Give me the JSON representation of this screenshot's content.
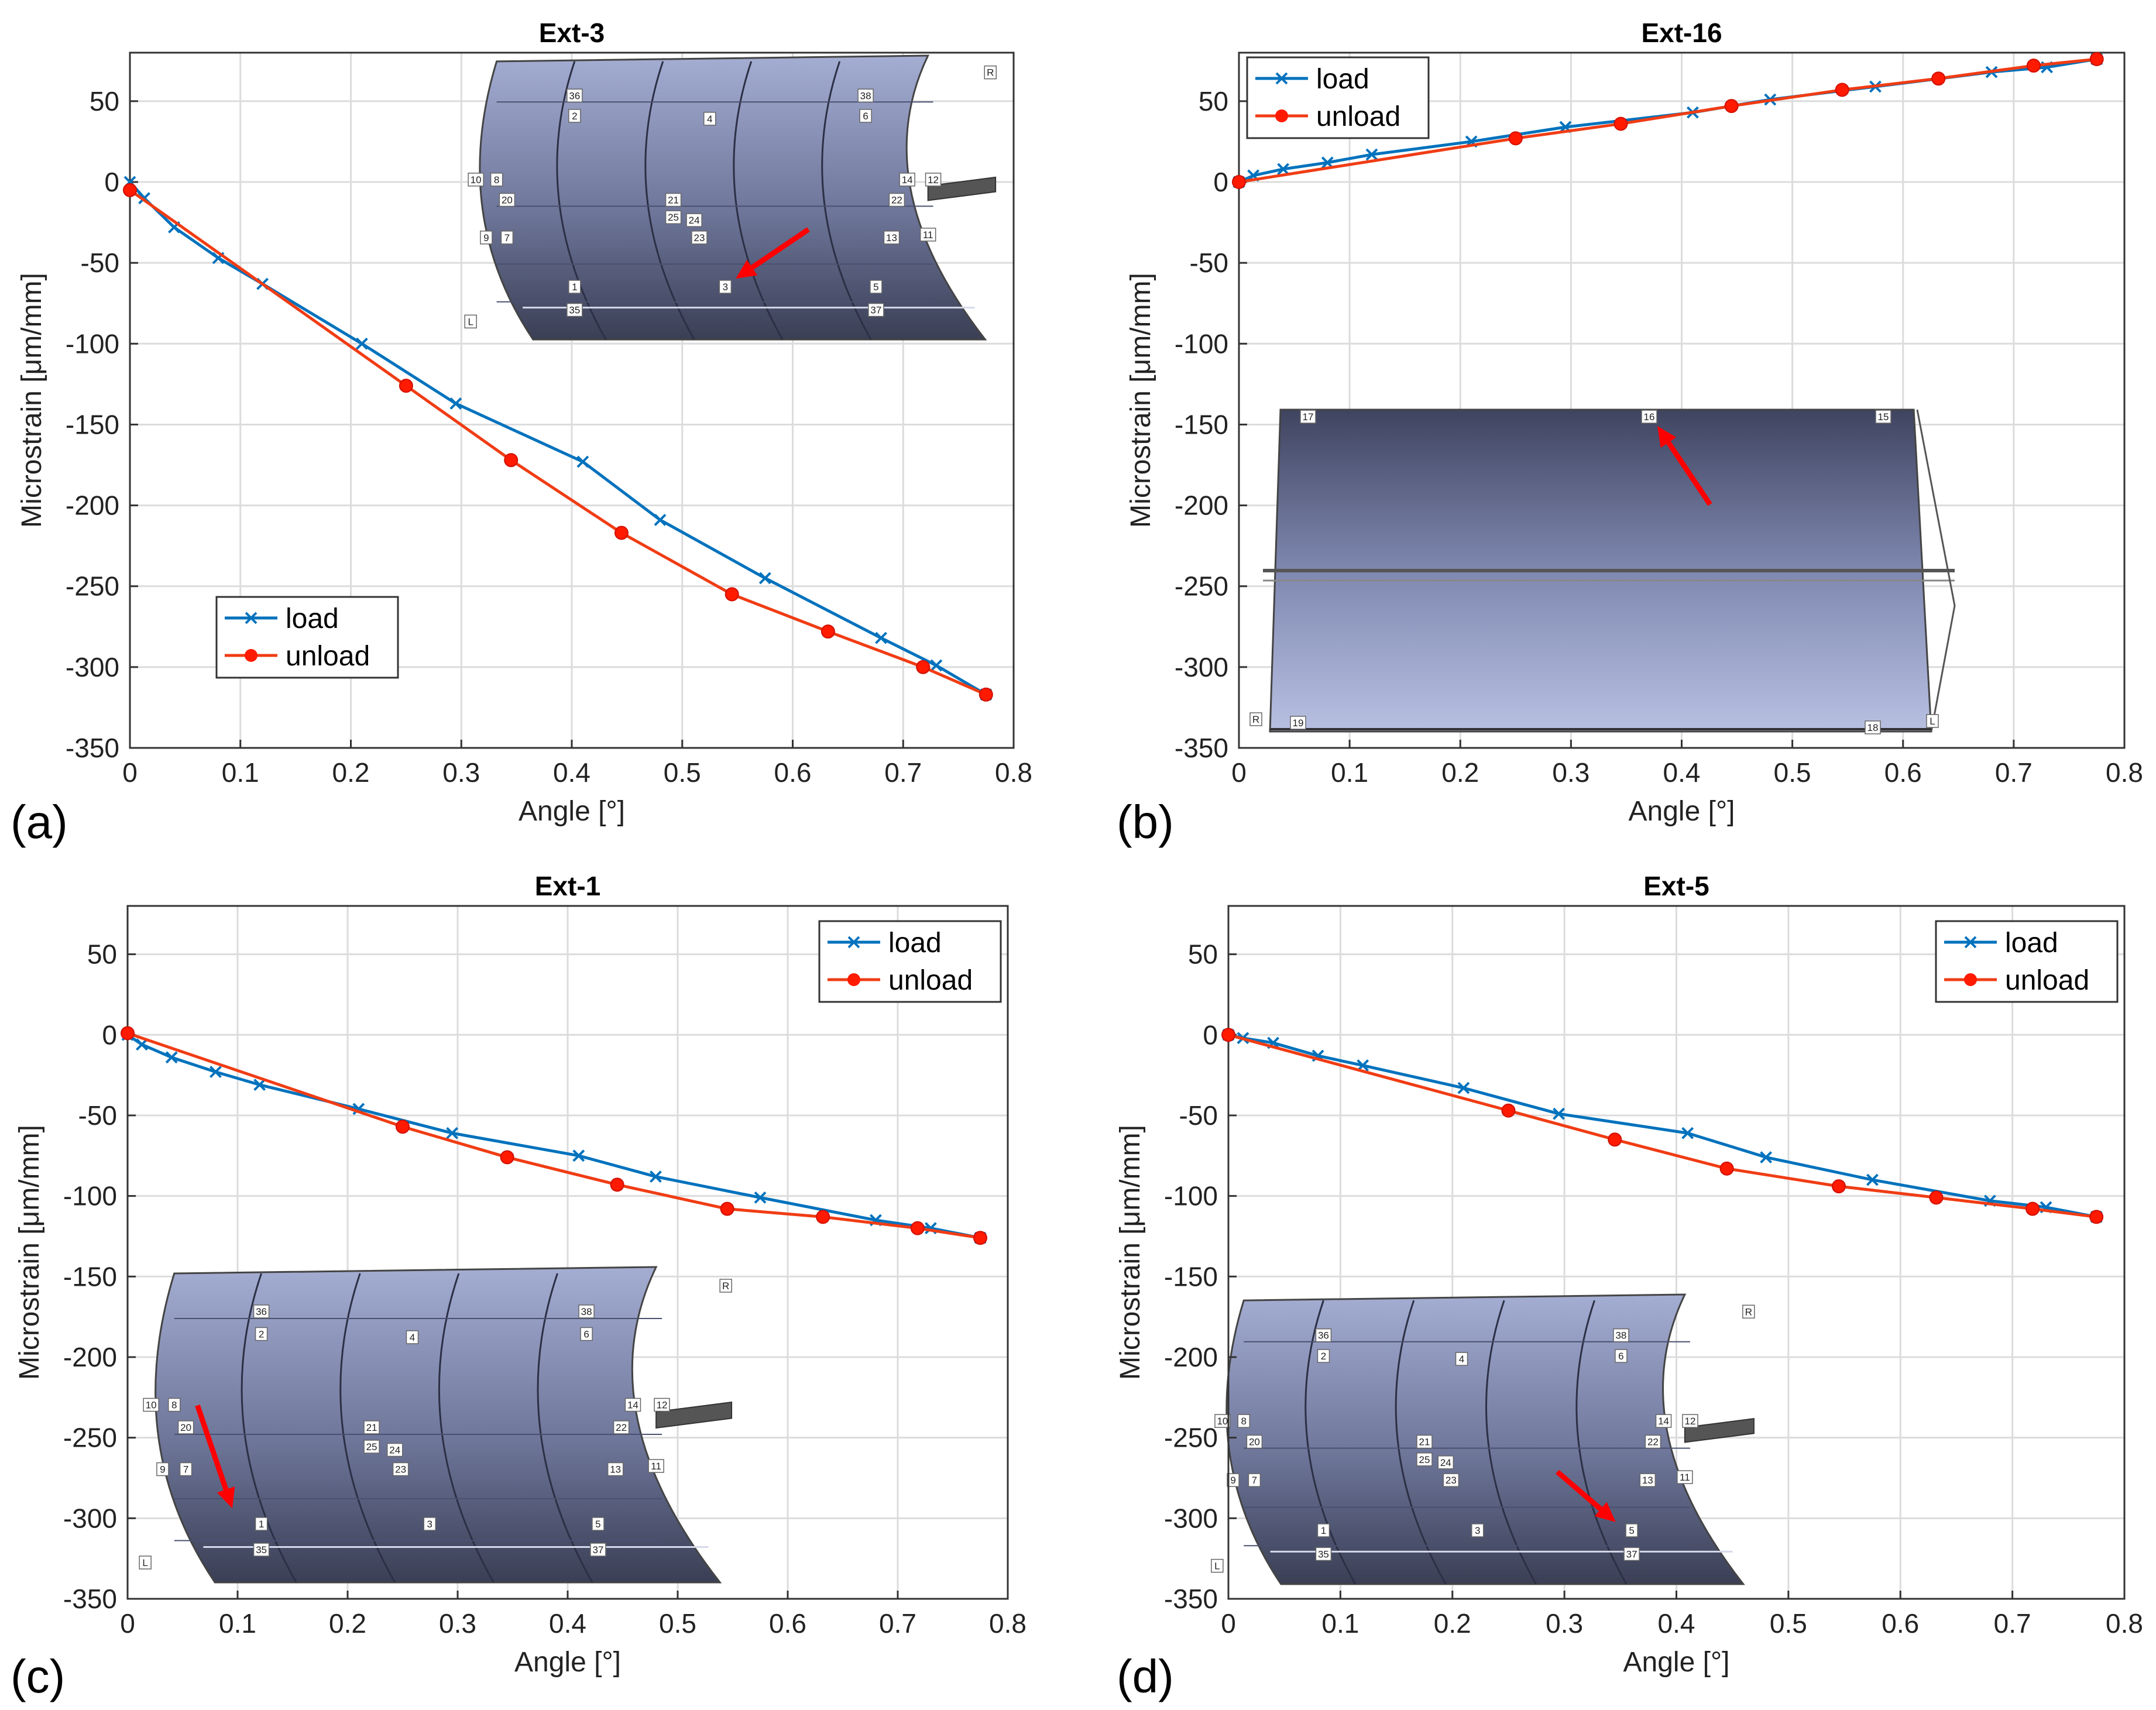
{
  "colors": {
    "load": "#0072BD",
    "unload": "#F03C14",
    "unload_marker": "#FF1A00",
    "arrow": "#FF0000",
    "panel_top": "#A0A9CF",
    "panel_bottom": "#3A3F55"
  },
  "chart_data": [
    {
      "panel": "(a)",
      "type": "line",
      "title": "Ext-3",
      "xlabel": "Angle [°]",
      "ylabel": "Microstrain [μm/mm]",
      "xlim": [
        0,
        0.8
      ],
      "ylim": [
        -350,
        80
      ],
      "xticks": [
        "0",
        "0.1",
        "0.2",
        "0.3",
        "0.4",
        "0.5",
        "0.6",
        "0.7",
        "0.8"
      ],
      "yticks": [
        "50",
        "0",
        "-50",
        "-100",
        "-150",
        "-200",
        "-250",
        "-300",
        "-350"
      ],
      "legend": {
        "position": "bottom-left",
        "entries": [
          "load",
          "unload"
        ]
      },
      "series": [
        {
          "name": "load",
          "marker": "x",
          "x": [
            0,
            0.013,
            0.04,
            0.08,
            0.12,
            0.21,
            0.295,
            0.41,
            0.48,
            0.575,
            0.68,
            0.73,
            0.775
          ],
          "y": [
            0,
            -10,
            -28,
            -47,
            -63,
            -100,
            -137,
            -173,
            -209,
            -245,
            -282,
            -299,
            -317
          ]
        },
        {
          "name": "unload",
          "marker": "o",
          "x": [
            0,
            0.25,
            0.345,
            0.445,
            0.545,
            0.632,
            0.718,
            0.775
          ],
          "y": [
            -5,
            -126,
            -172,
            -217,
            -255,
            -278,
            -300,
            -317
          ]
        }
      ],
      "inset": {
        "type": "curved",
        "target": "3",
        "labels": [
          "36",
          "38",
          "2",
          "4",
          "6",
          "10",
          "8",
          "20",
          "14",
          "12",
          "22",
          "21",
          "25",
          "24",
          "23",
          "9",
          "7",
          "13",
          "11",
          "1",
          "3",
          "5",
          "35",
          "37",
          "R",
          "L"
        ]
      }
    },
    {
      "panel": "(b)",
      "type": "line",
      "title": "Ext-16",
      "xlabel": "Angle [°]",
      "ylabel": "Microstrain [μm/mm]",
      "xlim": [
        0,
        0.8
      ],
      "ylim": [
        -350,
        80
      ],
      "xticks": [
        "0",
        "0.1",
        "0.2",
        "0.3",
        "0.4",
        "0.5",
        "0.6",
        "0.7",
        "0.8"
      ],
      "yticks": [
        "50",
        "0",
        "-50",
        "-100",
        "-150",
        "-200",
        "-250",
        "-300",
        "-350"
      ],
      "legend": {
        "position": "top-left",
        "entries": [
          "load",
          "unload"
        ]
      },
      "series": [
        {
          "name": "load",
          "marker": "x",
          "x": [
            0,
            0.013,
            0.04,
            0.08,
            0.12,
            0.21,
            0.295,
            0.41,
            0.48,
            0.575,
            0.68,
            0.73,
            0.775
          ],
          "y": [
            0,
            4,
            8,
            12,
            17,
            25,
            34,
            43,
            51,
            59,
            68,
            71,
            76
          ]
        },
        {
          "name": "unload",
          "marker": "o",
          "x": [
            0,
            0.25,
            0.345,
            0.445,
            0.545,
            0.632,
            0.718,
            0.775
          ],
          "y": [
            0,
            27,
            36,
            47,
            57,
            64,
            72,
            76
          ]
        }
      ],
      "inset": {
        "type": "flat",
        "target": "16",
        "labels": [
          "17",
          "16",
          "15",
          "19",
          "18",
          "R",
          "L"
        ]
      }
    },
    {
      "panel": "(c)",
      "type": "line",
      "title": "Ext-1",
      "xlabel": "Angle [°]",
      "ylabel": "Microstrain [μm/mm]",
      "xlim": [
        0,
        0.8
      ],
      "ylim": [
        -350,
        80
      ],
      "xticks": [
        "0",
        "0.1",
        "0.2",
        "0.3",
        "0.4",
        "0.5",
        "0.6",
        "0.7",
        "0.8"
      ],
      "yticks": [
        "50",
        "0",
        "-50",
        "-100",
        "-150",
        "-200",
        "-250",
        "-300",
        "-350"
      ],
      "legend": {
        "position": "top-right",
        "entries": [
          "load",
          "unload"
        ]
      },
      "series": [
        {
          "name": "load",
          "marker": "x",
          "x": [
            0,
            0.013,
            0.04,
            0.08,
            0.12,
            0.21,
            0.295,
            0.41,
            0.48,
            0.575,
            0.68,
            0.73,
            0.775
          ],
          "y": [
            0,
            -6,
            -14,
            -23,
            -31,
            -46,
            -61,
            -75,
            -88,
            -101,
            -115,
            -120,
            -126
          ]
        },
        {
          "name": "unload",
          "marker": "o",
          "x": [
            0,
            0.25,
            0.345,
            0.445,
            0.545,
            0.632,
            0.718,
            0.775
          ],
          "y": [
            1,
            -57,
            -76,
            -93,
            -108,
            -113,
            -120,
            -126
          ]
        }
      ],
      "inset": {
        "type": "curved",
        "target": "1",
        "labels": [
          "36",
          "38",
          "2",
          "4",
          "6",
          "10",
          "8",
          "20",
          "14",
          "12",
          "22",
          "21",
          "25",
          "24",
          "23",
          "9",
          "7",
          "13",
          "11",
          "1",
          "3",
          "5",
          "35",
          "37",
          "R",
          "L"
        ]
      }
    },
    {
      "panel": "(d)",
      "type": "line",
      "title": "Ext-5",
      "xlabel": "Angle [°]",
      "ylabel": "Microstrain [μm/mm]",
      "xlim": [
        0,
        0.8
      ],
      "ylim": [
        -350,
        80
      ],
      "xticks": [
        "0",
        "0.1",
        "0.2",
        "0.3",
        "0.4",
        "0.5",
        "0.6",
        "0.7",
        "0.8"
      ],
      "yticks": [
        "50",
        "0",
        "-50",
        "-100",
        "-150",
        "-200",
        "-250",
        "-300",
        "-350"
      ],
      "legend": {
        "position": "top-right",
        "entries": [
          "load",
          "unload"
        ]
      },
      "series": [
        {
          "name": "load",
          "marker": "x",
          "x": [
            0,
            0.013,
            0.04,
            0.08,
            0.12,
            0.21,
            0.295,
            0.41,
            0.48,
            0.575,
            0.68,
            0.73,
            0.775
          ],
          "y": [
            0,
            -2,
            -5,
            -13,
            -19,
            -33,
            -49,
            -61,
            -76,
            -90,
            -103,
            -107,
            -113
          ]
        },
        {
          "name": "unload",
          "marker": "o",
          "x": [
            0,
            0.25,
            0.345,
            0.445,
            0.545,
            0.632,
            0.718,
            0.775
          ],
          "y": [
            0,
            -47,
            -65,
            -83,
            -94,
            -101,
            -108,
            -113
          ]
        }
      ],
      "inset": {
        "type": "curved",
        "target": "5",
        "labels": [
          "36",
          "38",
          "2",
          "4",
          "6",
          "10",
          "8",
          "20",
          "14",
          "12",
          "22",
          "21",
          "25",
          "24",
          "23",
          "9",
          "7",
          "13",
          "11",
          "1",
          "3",
          "5",
          "35",
          "37",
          "R",
          "L"
        ]
      }
    }
  ]
}
